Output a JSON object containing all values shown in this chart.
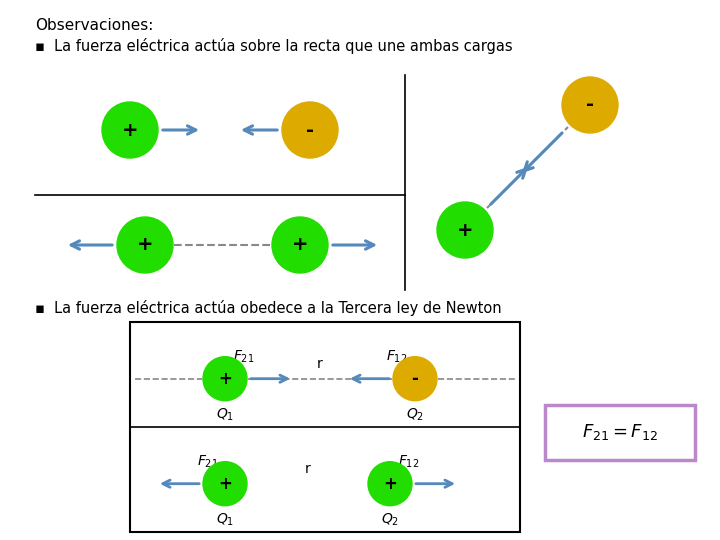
{
  "title": "Observaciones:",
  "bullet1": "La fuerza eléctrica actúa sobre la recta que une ambas cargas",
  "bullet2": "La fuerza eléctrica actúa obedece a la Tercera ley de Newton",
  "green_color": "#22dd00",
  "orange_color": "#ddaa00",
  "arrow_color": "#5588bb",
  "dashed_color": "#888888",
  "bg_color": "#ffffff",
  "text_color": "#000000",
  "eq_box_color": "#bb88cc",
  "font_size_title": 11,
  "font_size_bullet": 10.5,
  "font_size_charge": 14,
  "font_size_label": 10,
  "font_size_eq": 13
}
